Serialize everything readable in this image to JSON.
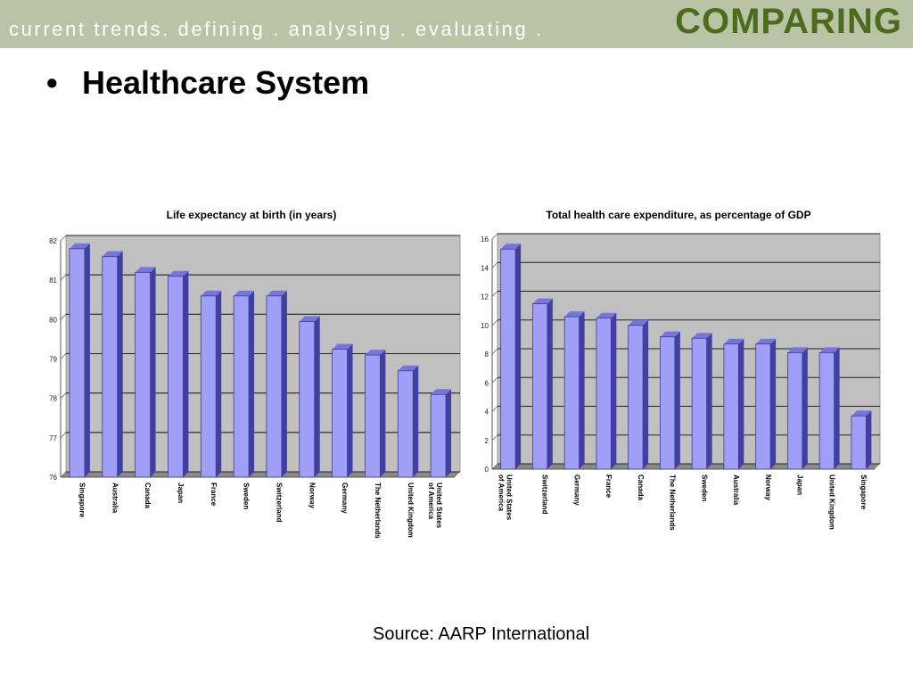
{
  "header": {
    "tagline": "current trends. defining . analysing . evaluating .",
    "section": "COMPARING"
  },
  "bullet": {
    "marker": "•",
    "text": "Healthcare System"
  },
  "source": "Source: AARP International",
  "colors": {
    "header_bg": "#b9c4a6",
    "section_text": "#4c6b1b",
    "bar_front": "#9f9ff8",
    "bar_side": "#4040a0",
    "plot_bg": "#c0c0c0"
  },
  "chart_data": [
    {
      "type": "bar",
      "title": "Life expectancy at birth (in years)",
      "categories": [
        "Singapore",
        "Australia",
        "Canada",
        "Japan",
        "France",
        "Sweden",
        "Switzerland",
        "Norway",
        "Germany",
        "The Netherlands",
        "United Kingdom",
        "United States of America"
      ],
      "values": [
        81.8,
        81.6,
        81.2,
        81.1,
        80.6,
        80.6,
        80.6,
        79.95,
        79.25,
        79.1,
        78.7,
        78.1
      ],
      "ylim": [
        76,
        82
      ],
      "yticks": [
        76,
        77,
        78,
        79,
        80,
        81,
        82
      ],
      "grid": true,
      "xlabel": "",
      "ylabel": ""
    },
    {
      "type": "bar",
      "title": "Total health care expenditure, as percentage of GDP",
      "categories": [
        "United States of America",
        "Switzerland",
        "Germany",
        "France",
        "Canada",
        "The Netherlands",
        "Sweden",
        "Australia",
        "Norway",
        "Japan",
        "United Kingdom",
        "Singapore"
      ],
      "values": [
        15.3,
        11.5,
        10.6,
        10.5,
        10.0,
        9.2,
        9.1,
        8.7,
        8.7,
        8.1,
        8.1,
        3.7
      ],
      "ylim": [
        0,
        16
      ],
      "yticks": [
        0,
        2,
        4,
        6,
        8,
        10,
        12,
        14,
        16
      ],
      "grid": true,
      "xlabel": "",
      "ylabel": ""
    }
  ]
}
